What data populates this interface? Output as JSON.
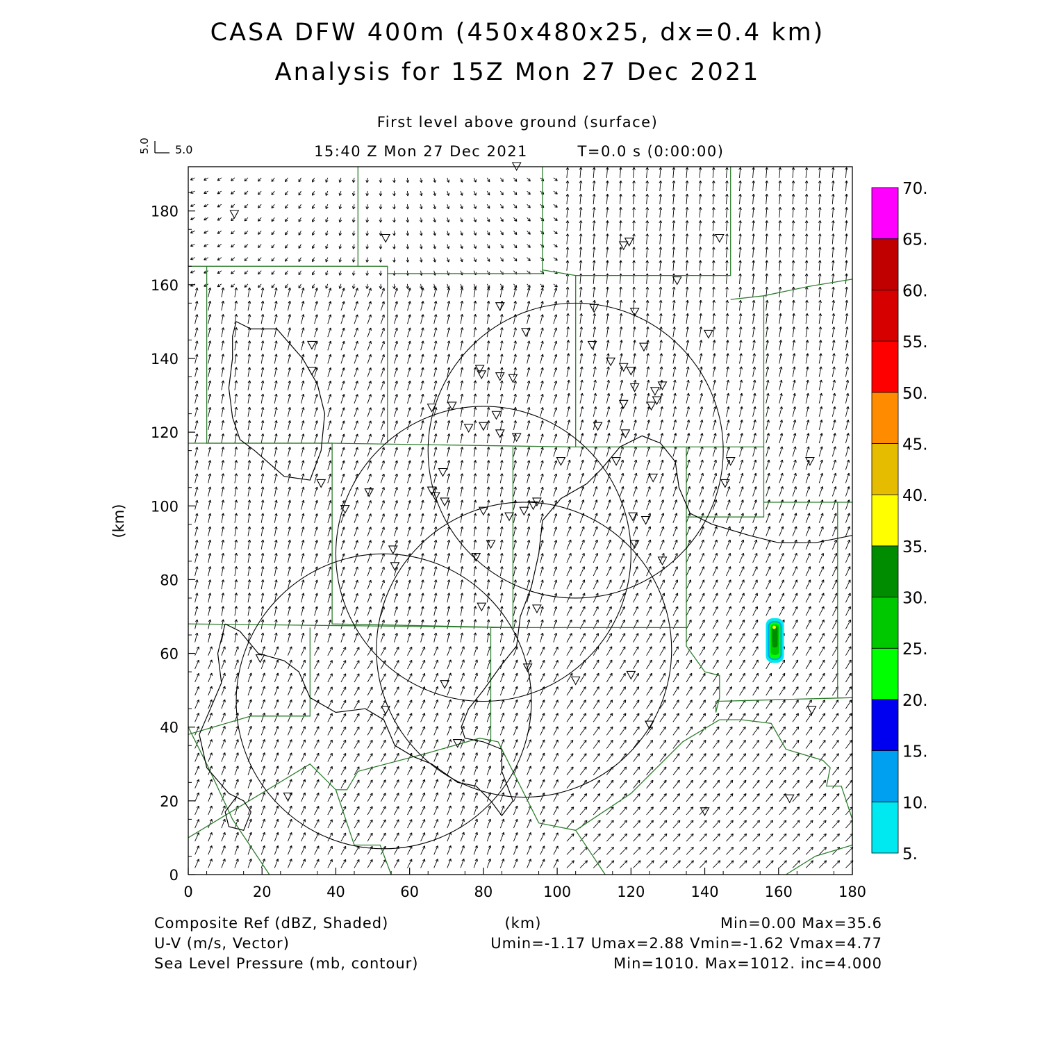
{
  "title_line1": "CASA DFW 400m (450x480x25, dx=0.4 km)",
  "title_line2": "Analysis for 15Z Mon 27 Dec 2021",
  "subtitle": "First level above ground (surface)",
  "valid_time": "15:40 Z Mon 27 Dec 2021",
  "forecast_time": "T=0.0 s (0:00:00)",
  "vector_key": {
    "x_label": "5.0",
    "y_label": "5.0"
  },
  "footer": {
    "left": [
      "Composite Ref (dBZ, Shaded)",
      "U-V (m/s, Vector)",
      "Sea Level Pressure (mb, contour)"
    ],
    "center_unit": "(km)",
    "right": [
      "Min=0.00 Max=35.6",
      "Umin=-1.17 Umax=2.88 Vmin=-1.62 Vmax=4.77",
      "Min=1010. Max=1012. inc=4.000"
    ]
  },
  "chart_data": {
    "type": "heatmap",
    "xlabel": "(km)",
    "ylabel": "(km)",
    "xlim": [
      0,
      180
    ],
    "ylim": [
      0,
      192
    ],
    "x_ticks": [
      "0",
      "20",
      "40",
      "60",
      "80",
      "100",
      "120",
      "140",
      "160",
      "180"
    ],
    "y_ticks": [
      "0",
      "20",
      "40",
      "60",
      "80",
      "100",
      "120",
      "140",
      "160",
      "180"
    ],
    "colorbar": {
      "labels": [
        "5.",
        "10.",
        "15.",
        "20.",
        "25.",
        "30.",
        "35.",
        "40.",
        "45.",
        "50.",
        "55.",
        "60.",
        "65.",
        "70."
      ],
      "colors": [
        "#00e8f0",
        "#00a0f0",
        "#0000f0",
        "#00ff00",
        "#00c800",
        "#008c00",
        "#ffff00",
        "#e6bc00",
        "#ff8c00",
        "#ff0000",
        "#d60000",
        "#c00000",
        "#ff00ff"
      ]
    },
    "reflectivity_cells": [
      {
        "x": 159,
        "y": 63.5,
        "max_dbz": 35.6
      }
    ],
    "radar_rings": [
      {
        "x": 105,
        "y": 115,
        "r": 40
      },
      {
        "x": 80,
        "y": 87,
        "r": 40
      },
      {
        "x": 91,
        "y": 61,
        "r": 40
      },
      {
        "x": 53,
        "y": 47,
        "r": 40
      }
    ],
    "stations": [
      [
        89,
        192
      ],
      [
        12.5,
        179
      ],
      [
        53.5,
        172.5
      ],
      [
        118,
        170.5
      ],
      [
        119.5,
        171.5
      ],
      [
        144,
        172.5
      ],
      [
        132.5,
        161
      ],
      [
        84.5,
        154
      ],
      [
        110,
        153.5
      ],
      [
        121,
        152.5
      ],
      [
        91.5,
        147
      ],
      [
        141,
        146.5
      ],
      [
        33.5,
        143.5
      ],
      [
        109.5,
        143.5
      ],
      [
        123.5,
        143
      ],
      [
        33.5,
        136.5
      ],
      [
        114.5,
        139
      ],
      [
        118,
        137.5
      ],
      [
        120,
        136.5
      ],
      [
        79,
        137
      ],
      [
        79.5,
        135.5
      ],
      [
        84.5,
        135
      ],
      [
        88,
        134.5
      ],
      [
        121,
        132
      ],
      [
        126.5,
        131
      ],
      [
        128.5,
        132.5
      ],
      [
        127,
        128.5
      ],
      [
        125.5,
        127
      ],
      [
        118,
        127.5
      ],
      [
        66,
        126.5
      ],
      [
        71.5,
        127
      ],
      [
        83.5,
        124.5
      ],
      [
        76,
        121
      ],
      [
        80,
        121.5
      ],
      [
        111,
        121.5
      ],
      [
        118.5,
        119.5
      ],
      [
        84.5,
        119.5
      ],
      [
        89,
        118.5
      ],
      [
        69,
        109
      ],
      [
        101,
        112
      ],
      [
        116,
        112
      ],
      [
        126,
        107.5
      ],
      [
        147,
        112
      ],
      [
        168.5,
        112
      ],
      [
        36,
        106
      ],
      [
        49,
        103.5
      ],
      [
        66,
        104
      ],
      [
        67,
        102.5
      ],
      [
        69.5,
        101
      ],
      [
        145.5,
        106
      ],
      [
        42.5,
        99
      ],
      [
        80,
        98.5
      ],
      [
        87,
        97
      ],
      [
        91,
        98.5
      ],
      [
        94.5,
        101
      ],
      [
        93.5,
        100
      ],
      [
        120.5,
        97
      ],
      [
        124,
        96
      ],
      [
        82,
        89.5
      ],
      [
        121,
        89.5
      ],
      [
        55.5,
        88
      ],
      [
        56,
        83.5
      ],
      [
        78,
        86
      ],
      [
        128.5,
        85
      ],
      [
        79.5,
        72.5
      ],
      [
        94.5,
        72
      ],
      [
        19.5,
        58.5
      ],
      [
        69.5,
        51.5
      ],
      [
        92,
        56
      ],
      [
        105,
        52.5
      ],
      [
        120,
        54
      ],
      [
        53.5,
        44.5
      ],
      [
        125,
        40.5
      ],
      [
        73,
        35.5
      ],
      [
        169,
        44.5
      ],
      [
        27,
        21
      ],
      [
        163,
        20.5
      ],
      [
        140,
        17
      ]
    ]
  }
}
